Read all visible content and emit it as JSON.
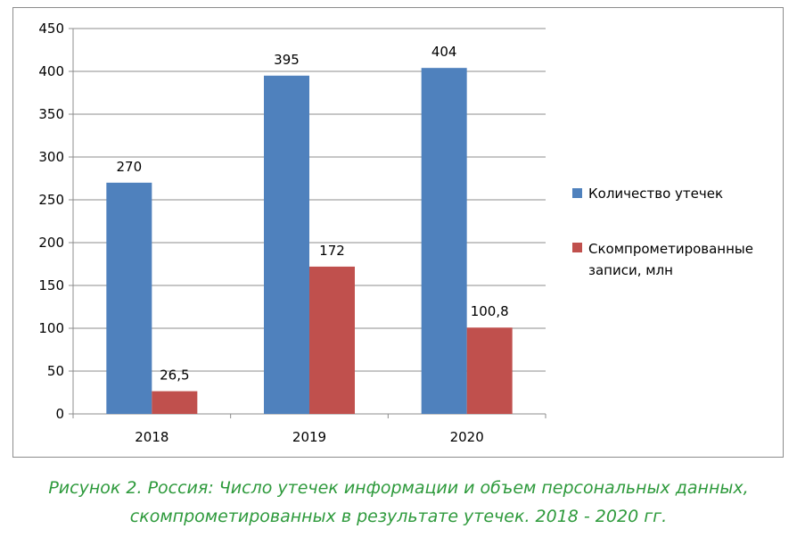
{
  "chart_data": {
    "type": "bar",
    "categories": [
      "2018",
      "2019",
      "2020"
    ],
    "series": [
      {
        "name": "Количество утечек",
        "values": [
          270,
          395,
          404
        ],
        "labels": [
          "270",
          "395",
          "404"
        ],
        "color": "#4f81bd"
      },
      {
        "name_lines": [
          "Скомпрометированные",
          "записи, млн"
        ],
        "values": [
          26.5,
          172,
          100.8
        ],
        "labels": [
          "26,5",
          "172",
          "100,8"
        ],
        "color": "#c0504d"
      }
    ],
    "ylim": [
      0,
      450
    ],
    "yticks": [
      0,
      50,
      100,
      150,
      200,
      250,
      300,
      350,
      400,
      450
    ],
    "grid": true,
    "legend": "right"
  },
  "caption": {
    "line1": "Рисунок 2. Россия: Число утечек информации и объем персональных данных,",
    "line2": "скомпрометированных в результате утечек. 2018 - 2020 гг."
  }
}
